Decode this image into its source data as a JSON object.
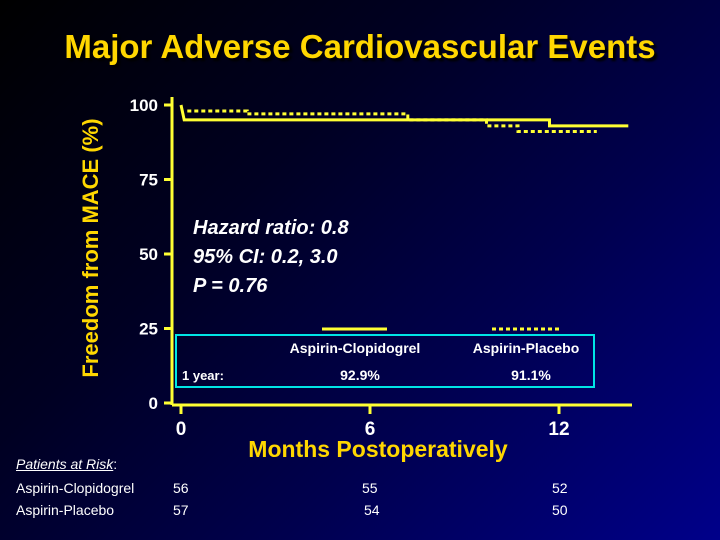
{
  "title": "Major Adverse Cardiovascular Events",
  "colors": {
    "accent": "#ffd700",
    "line": "#ffff33",
    "box_border": "#00e5e5",
    "text": "#ffffff"
  },
  "chart_data": {
    "type": "line",
    "xlabel": "Months Postoperatively",
    "ylabel": "Freedom from MACE (%)",
    "xlim": [
      0,
      14
    ],
    "ylim": [
      0,
      100
    ],
    "x_ticks": [
      0,
      6,
      12
    ],
    "y_ticks": [
      0,
      25,
      50,
      75,
      100
    ],
    "series": [
      {
        "name": "Aspirin-Clopidogrel",
        "style": "solid",
        "steps": [
          [
            0,
            100
          ],
          [
            0.1,
            95
          ],
          [
            11.7,
            95
          ],
          [
            11.7,
            93
          ],
          [
            14.2,
            93
          ]
        ]
      },
      {
        "name": "Aspirin-Placebo",
        "style": "dotted",
        "steps": [
          [
            0.2,
            98
          ],
          [
            2.1,
            98
          ],
          [
            2.1,
            97
          ],
          [
            7.2,
            97
          ],
          [
            7.2,
            95
          ],
          [
            9.7,
            95
          ],
          [
            9.7,
            93
          ],
          [
            10.7,
            93
          ],
          [
            10.7,
            91.1
          ],
          [
            13.2,
            91.1
          ]
        ]
      }
    ],
    "annotations": [
      "Hazard ratio: 0.8",
      "95% CI: 0.2, 3.0",
      "P = 0.76"
    ],
    "legend_table": {
      "headers": [
        "Aspirin-Clopidogrel",
        "Aspirin-Placebo"
      ],
      "row_label": "1 year:",
      "values": [
        "92.9%",
        "91.1%"
      ]
    }
  },
  "patients_at_risk": {
    "header": "Patients at Risk",
    "header_suffix": ":",
    "rows": [
      {
        "label": "Aspirin-Clopidogrel",
        "values": [
          "56",
          "55",
          "52"
        ]
      },
      {
        "label": "Aspirin-Placebo",
        "values": [
          "57",
          "54",
          "50"
        ]
      }
    ]
  }
}
